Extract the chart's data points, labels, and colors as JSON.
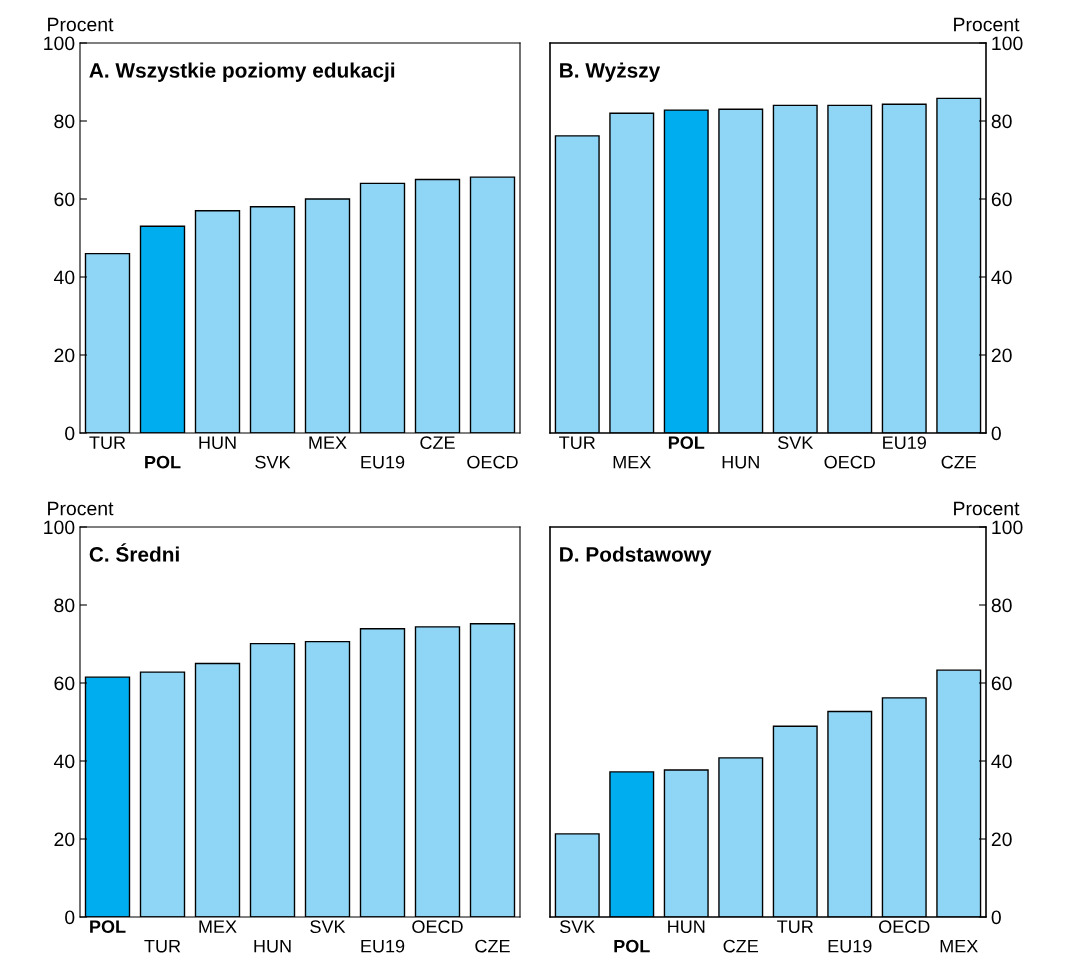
{
  "chart_data": [
    {
      "type": "bar",
      "title": "A. Wszystkie poziomy edukacji",
      "ylabel": "Procent",
      "ylim": [
        0,
        100
      ],
      "yticks": [
        0,
        20,
        40,
        60,
        80,
        100
      ],
      "categories": [
        "TUR",
        "POL",
        "HUN",
        "SVK",
        "MEX",
        "EU19",
        "CZE",
        "OECD"
      ],
      "series": [
        {
          "values": [
            46,
            53,
            57,
            58,
            60,
            64,
            65,
            65.6
          ],
          "colors": [
            "#8fd6f6",
            "#00aeef",
            "#8fd6f6",
            "#8fd6f6",
            "#8fd6f6",
            "#8fd6f6",
            "#8fd6f6",
            "#8fd6f6"
          ]
        }
      ]
    },
    {
      "type": "bar",
      "title": "B. Wyższy",
      "y2label": "Procent",
      "y2lim": [
        0,
        100
      ],
      "y2ticks": [
        0,
        20,
        40,
        60,
        80,
        100
      ],
      "categories": [
        "TUR",
        "MEX",
        "POL",
        "HUN",
        "SVK",
        "OECD",
        "EU19",
        "CZE"
      ],
      "series": [
        {
          "axis": "y2",
          "values": [
            76.2,
            82,
            82.8,
            83,
            84,
            84,
            84.3,
            85.8
          ],
          "colors": [
            "#8fd6f6",
            "#8fd6f6",
            "#00aeef",
            "#8fd6f6",
            "#8fd6f6",
            "#8fd6f6",
            "#8fd6f6",
            "#8fd6f6"
          ]
        }
      ]
    },
    {
      "type": "bar",
      "title": "C. Średni",
      "ylabel": "Procent",
      "ylim": [
        0,
        100
      ],
      "yticks": [
        0,
        20,
        40,
        60,
        80,
        100
      ],
      "categories": [
        "POL",
        "TUR",
        "MEX",
        "HUN",
        "SVK",
        "EU19",
        "OECD",
        "CZE"
      ],
      "series": [
        {
          "values": [
            61.5,
            62.8,
            65,
            70.1,
            70.6,
            73.9,
            74.4,
            75.2
          ],
          "colors": [
            "#00aeef",
            "#8fd6f6",
            "#8fd6f6",
            "#8fd6f6",
            "#8fd6f6",
            "#8fd6f6",
            "#8fd6f6",
            "#8fd6f6"
          ]
        }
      ]
    },
    {
      "type": "bar",
      "title": "D. Podstawowy",
      "y2label": "Procent",
      "y2lim": [
        0,
        100
      ],
      "y2ticks": [
        0,
        20,
        40,
        60,
        80,
        100
      ],
      "categories": [
        "SVK",
        "POL",
        "HUN",
        "CZE",
        "TUR",
        "EU19",
        "OECD",
        "MEX"
      ],
      "series": [
        {
          "axis": "y2",
          "values": [
            21.3,
            37.2,
            37.7,
            40.8,
            48.9,
            52.7,
            56.2,
            63.3
          ],
          "colors": [
            "#8fd6f6",
            "#00aeef",
            "#8fd6f6",
            "#8fd6f6",
            "#8fd6f6",
            "#8fd6f6",
            "#8fd6f6",
            "#8fd6f6"
          ]
        }
      ]
    }
  ]
}
